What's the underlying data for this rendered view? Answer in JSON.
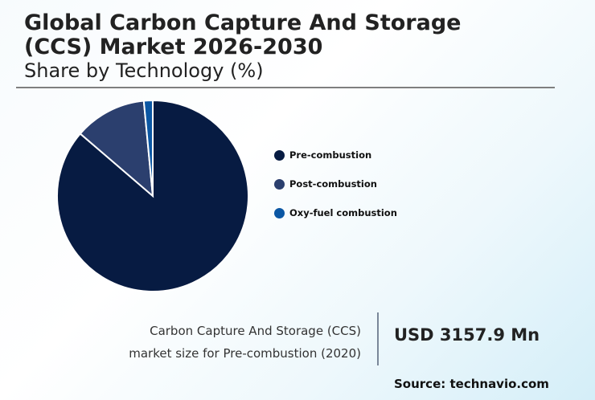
{
  "header": {
    "title_line1": "Global Carbon Capture And Storage",
    "title_line2": "(CCS) Market 2026-2030",
    "subtitle": "Share by Technology (%)"
  },
  "legend": [
    {
      "label": "Pre-combustion",
      "color": "#071b42"
    },
    {
      "label": "Post-combustion",
      "color": "#2b3f6e"
    },
    {
      "label": "Oxy-fuel combustion",
      "color": "#0b57a4"
    }
  ],
  "stat": {
    "label_line1": "Carbon Capture And Storage (CCS)",
    "label_line2": "market size for Pre-combustion (2020)",
    "value": "USD 3157.9 Mn"
  },
  "source": "Source: technavio.com",
  "chart_data": {
    "type": "pie",
    "title": "Global Carbon Capture And Storage (CCS) Market 2026-2030",
    "subtitle": "Share by Technology (%)",
    "categories": [
      "Pre-combustion",
      "Post-combustion",
      "Oxy-fuel combustion"
    ],
    "values": [
      86.3,
      12.2,
      1.5
    ],
    "colors": [
      "#071b42",
      "#2b3f6e",
      "#0b57a4"
    ],
    "legend_position": "right",
    "start_angle": "top, clockwise"
  }
}
